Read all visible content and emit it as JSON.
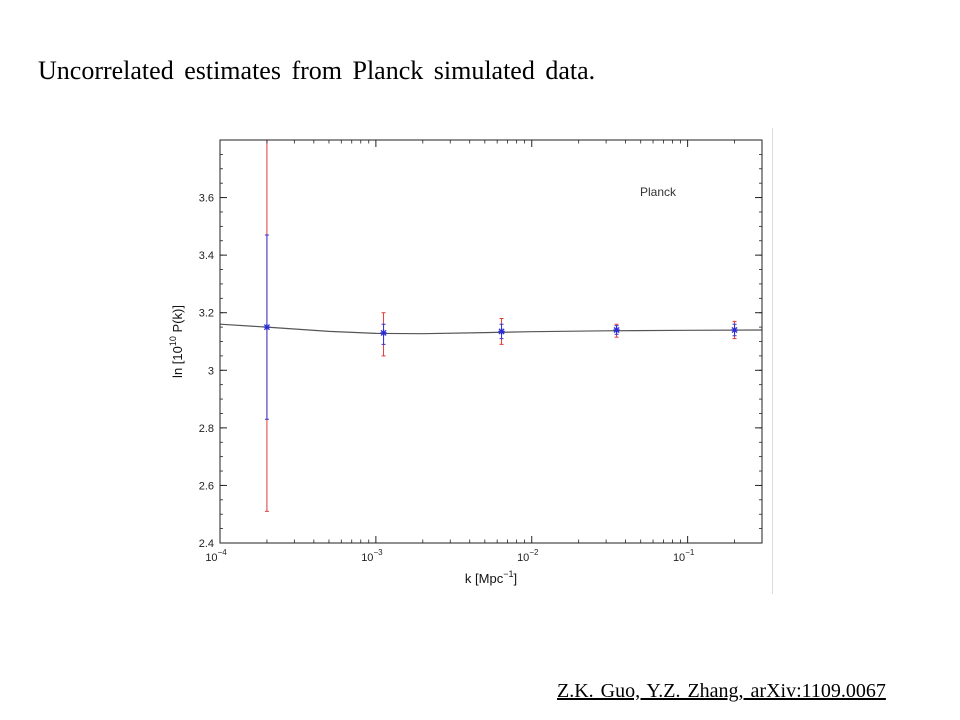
{
  "slide": {
    "title": "Uncorrelated estimates from Planck simulated data.",
    "citation": "Z.K. Guo, Y.Z. Zhang, arXiv:1109.0067"
  },
  "chart_data": {
    "type": "scatter",
    "annotation": "Planck",
    "xlabel": {
      "base": "k [Mpc",
      "sup": "−1",
      "tail": "]"
    },
    "ylabel": {
      "base": "ln [10",
      "sup": "10",
      "tail": " P(k)]"
    },
    "x_scale": "log",
    "xlim": [
      0.0001,
      0.3
    ],
    "ylim": [
      2.4,
      3.8
    ],
    "x_ticks": [
      {
        "value": 0.0001,
        "base": "10",
        "exp": "−4"
      },
      {
        "value": 0.001,
        "base": "10",
        "exp": "−3"
      },
      {
        "value": 0.01,
        "base": "10",
        "exp": "−2"
      },
      {
        "value": 0.1,
        "base": "10",
        "exp": "−1"
      }
    ],
    "y_ticks": [
      {
        "value": 2.4,
        "label": "2.4"
      },
      {
        "value": 2.6,
        "label": "2.6"
      },
      {
        "value": 2.8,
        "label": "2.8"
      },
      {
        "value": 3.0,
        "label": "3"
      },
      {
        "value": 3.2,
        "label": "3.2"
      },
      {
        "value": 3.4,
        "label": "3.4"
      },
      {
        "value": 3.6,
        "label": "3.6"
      }
    ],
    "grid": false,
    "points": [
      {
        "k": 0.0002,
        "value": 3.15,
        "err_red": [
          2.51,
          3.8
        ],
        "err_blue": [
          2.83,
          3.47
        ]
      },
      {
        "k": 0.00112,
        "value": 3.13,
        "err_red": [
          3.05,
          3.2
        ],
        "err_blue": [
          3.09,
          3.16
        ]
      },
      {
        "k": 0.0064,
        "value": 3.135,
        "err_red": [
          3.09,
          3.18
        ],
        "err_blue": [
          3.11,
          3.16
        ]
      },
      {
        "k": 0.035,
        "value": 3.14,
        "err_red": [
          3.115,
          3.16
        ],
        "err_blue": [
          3.125,
          3.155
        ]
      },
      {
        "k": 0.2,
        "value": 3.14,
        "err_red": [
          3.11,
          3.17
        ],
        "err_blue": [
          3.12,
          3.16
        ]
      }
    ],
    "curve": {
      "x": [
        0.0001,
        0.0002,
        0.0005,
        0.001,
        0.002,
        0.005,
        0.01,
        0.03,
        0.1,
        0.3
      ],
      "y": [
        3.16,
        3.15,
        3.135,
        3.128,
        3.127,
        3.131,
        3.134,
        3.137,
        3.139,
        3.14
      ]
    },
    "colors": {
      "marker": "#2a2ad6",
      "err_inner": "#3535d4",
      "err_outer": "#e03a3a",
      "curve": "#555555",
      "axis": "#222222"
    }
  }
}
